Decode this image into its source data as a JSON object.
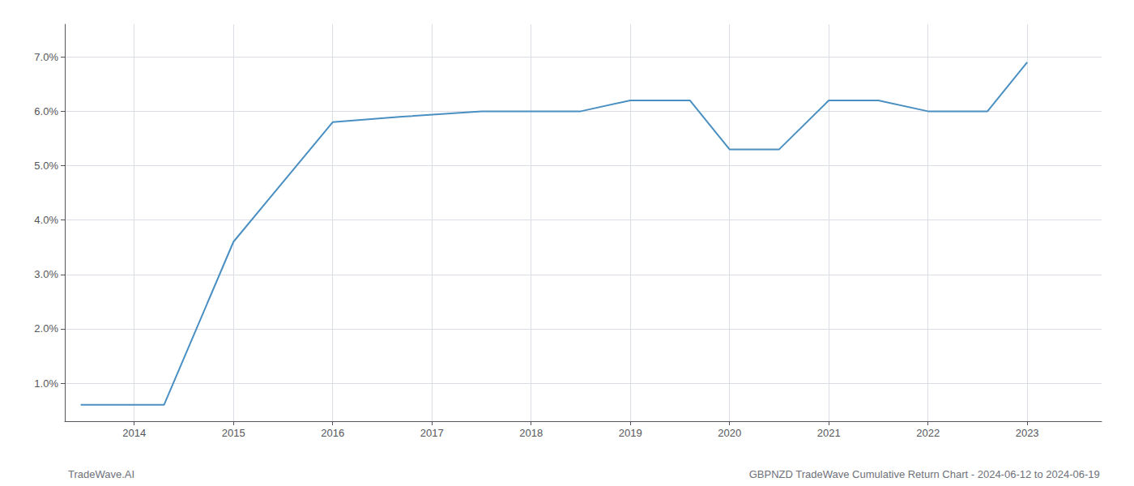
{
  "chart_data": {
    "type": "line",
    "x": [
      2013.46,
      2014.3,
      2015.0,
      2016.0,
      2016.7,
      2017.5,
      2018.0,
      2018.5,
      2019.0,
      2019.6,
      2020.0,
      2020.5,
      2021.0,
      2021.5,
      2022.0,
      2022.6,
      2023.0
    ],
    "values": [
      0.006,
      0.006,
      0.036,
      0.058,
      0.059,
      0.06,
      0.06,
      0.06,
      0.062,
      0.062,
      0.053,
      0.053,
      0.062,
      0.062,
      0.06,
      0.06,
      0.069
    ],
    "color": "#4a8fc2",
    "xlim": [
      2013.3,
      2023.75
    ],
    "ylim": [
      0.003,
      0.076
    ],
    "xticks": [
      2014,
      2015,
      2016,
      2017,
      2018,
      2019,
      2020,
      2021,
      2022,
      2023
    ],
    "yticks": [
      {
        "value": 0.01,
        "label": "1.0%"
      },
      {
        "value": 0.02,
        "label": "2.0%"
      },
      {
        "value": 0.03,
        "label": "3.0%"
      },
      {
        "value": 0.04,
        "label": "4.0%"
      },
      {
        "value": 0.05,
        "label": "5.0%"
      },
      {
        "value": 0.06,
        "label": "6.0%"
      },
      {
        "value": 0.07,
        "label": "7.0%"
      }
    ],
    "grid": true,
    "annotations": [
      "TradeWave.AI",
      "GBPNZD TradeWave Cumulative Return Chart - 2024-06-12 to 2024-06-19"
    ]
  }
}
